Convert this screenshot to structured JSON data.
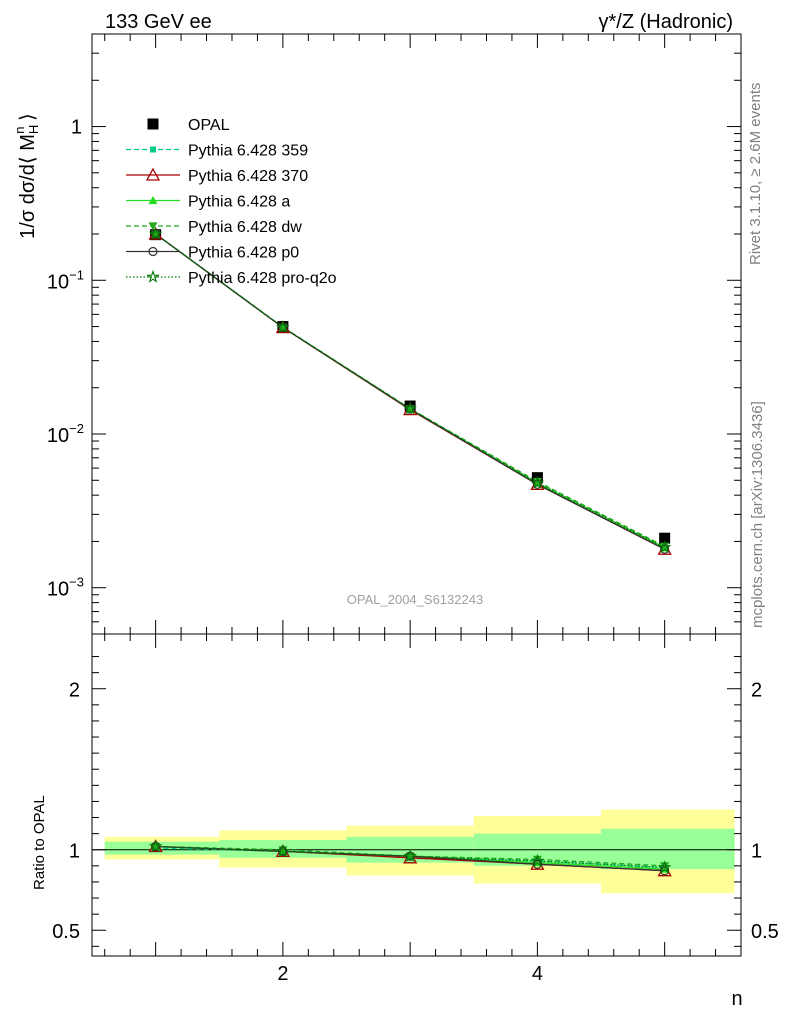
{
  "header": {
    "left": "133 GeV ee",
    "right": "γ*/Z (Hadronic)"
  },
  "side": {
    "rivet": "Rivet 3.1.10, ≥ 2.6M events",
    "mcplots": "mcplots.cern.ch [arXiv:1306.3436]"
  },
  "watermark": "OPAL_2004_S6132243",
  "chart_data": [
    {
      "type": "scatter",
      "yscale": "log",
      "ylabel": "1/σ dσ/d⟨ M_H^n ⟩",
      "ylim": [
        0.0005,
        4
      ],
      "xlim": [
        0.5,
        5.6
      ],
      "ytick_labels": [
        "10^-3",
        "10^-2",
        "10^-1",
        "1"
      ],
      "x": [
        1,
        2,
        3,
        4,
        5
      ],
      "series": [
        {
          "name": "OPAL",
          "color": "#000000",
          "marker": "square",
          "values": [
            0.198,
            0.05,
            0.0152,
            0.0052,
            0.0021
          ]
        },
        {
          "name": "Pythia 6.428 359",
          "color": "#00cc88",
          "style": "dashed",
          "marker": "small-square",
          "values": [
            0.2,
            0.0495,
            0.0146,
            0.0048,
            0.00185
          ]
        },
        {
          "name": "Pythia 6.428 370",
          "color": "#aa0000",
          "style": "solid",
          "marker": "open-triangle",
          "values": [
            0.2,
            0.0492,
            0.0144,
            0.0047,
            0.00178
          ]
        },
        {
          "name": "Pythia 6.428 a",
          "color": "#22dd22",
          "style": "solid",
          "marker": "triangle",
          "values": [
            0.2,
            0.0494,
            0.0145,
            0.0048,
            0.00182
          ]
        },
        {
          "name": "Pythia 6.428 dw",
          "color": "#22aa22",
          "style": "dashed",
          "marker": "down-triangle",
          "values": [
            0.2,
            0.0495,
            0.0146,
            0.0049,
            0.00186
          ]
        },
        {
          "name": "Pythia 6.428 p0",
          "color": "#333333",
          "style": "solid",
          "marker": "open-circle",
          "values": [
            0.2,
            0.0493,
            0.0145,
            0.0047,
            0.00178
          ]
        },
        {
          "name": "Pythia 6.428 pro-q2o",
          "color": "#007700",
          "style": "dotted",
          "marker": "open-star",
          "values": [
            0.2,
            0.0494,
            0.0146,
            0.0048,
            0.00183
          ]
        }
      ]
    },
    {
      "type": "scatter",
      "ylabel": "Ratio to OPAL",
      "xlabel": "n",
      "ylim": [
        0.34,
        2.34
      ],
      "xlim": [
        0.5,
        5.6
      ],
      "xticks": [
        2,
        4
      ],
      "yticks": [
        0.5,
        1,
        2
      ],
      "bands": [
        {
          "x0": 0.6,
          "x1": 1.5,
          "green": [
            0.97,
            1.05
          ],
          "yellow": [
            0.94,
            1.08
          ]
        },
        {
          "x0": 1.5,
          "x1": 2.5,
          "green": [
            0.95,
            1.06
          ],
          "yellow": [
            0.89,
            1.12
          ]
        },
        {
          "x0": 2.5,
          "x1": 3.5,
          "green": [
            0.92,
            1.08
          ],
          "yellow": [
            0.84,
            1.15
          ]
        },
        {
          "x0": 3.5,
          "x1": 4.5,
          "green": [
            0.9,
            1.1
          ],
          "yellow": [
            0.79,
            1.21
          ]
        },
        {
          "x0": 4.5,
          "x1": 5.55,
          "green": [
            0.88,
            1.13
          ],
          "yellow": [
            0.73,
            1.25
          ]
        }
      ],
      "series": [
        {
          "name": "Pythia 6.428 359",
          "values": [
            1.01,
            0.99,
            0.96,
            0.93,
            0.89
          ]
        },
        {
          "name": "Pythia 6.428 370",
          "values": [
            1.02,
            0.99,
            0.95,
            0.91,
            0.87
          ]
        },
        {
          "name": "Pythia 6.428 a",
          "values": [
            1.02,
            0.99,
            0.96,
            0.92,
            0.88
          ]
        },
        {
          "name": "Pythia 6.428 dw",
          "values": [
            1.02,
            1.0,
            0.96,
            0.94,
            0.9
          ]
        },
        {
          "name": "Pythia 6.428 p0",
          "values": [
            1.02,
            0.99,
            0.96,
            0.91,
            0.87
          ]
        },
        {
          "name": "Pythia 6.428 pro-q2o",
          "values": [
            1.02,
            0.99,
            0.96,
            0.93,
            0.89
          ]
        }
      ]
    }
  ]
}
